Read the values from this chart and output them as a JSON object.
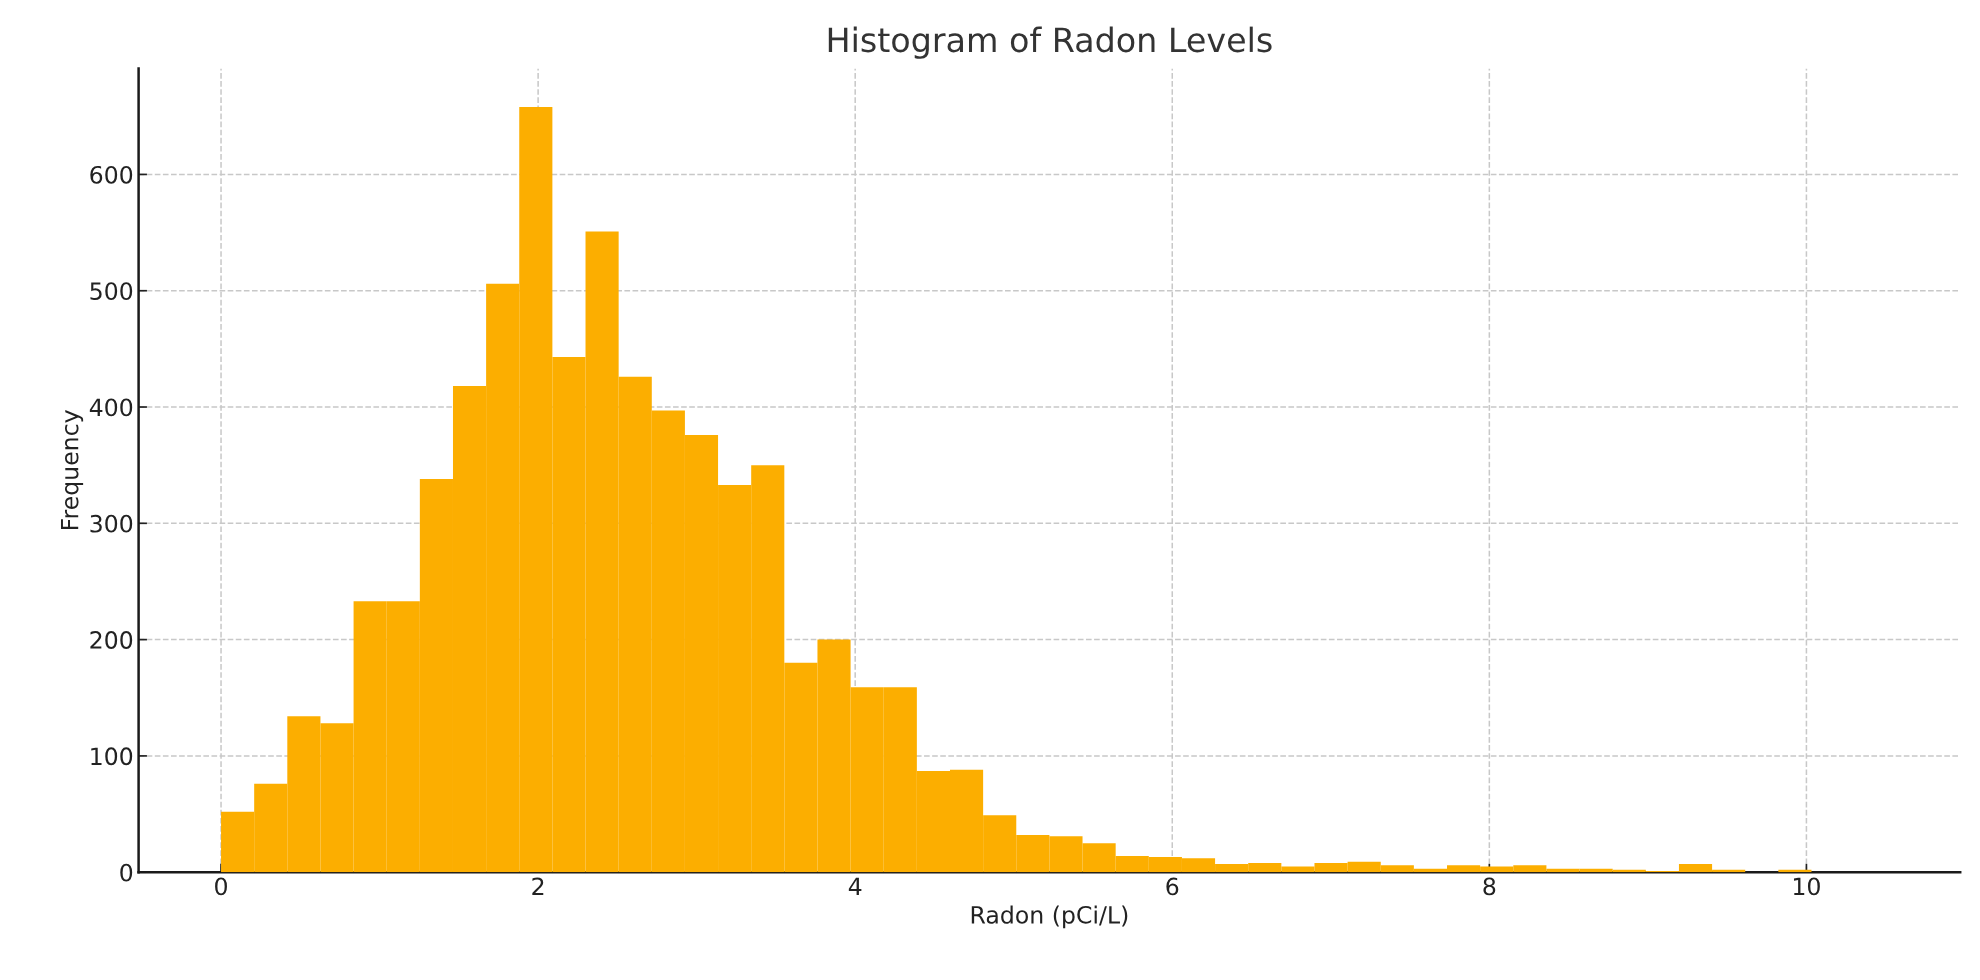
{
  "chart_data": {
    "type": "histogram",
    "title": "Histogram of Radon Levels",
    "xlabel": "Radon (pCi/L)",
    "ylabel": "Frequency",
    "bins": [
      0,
      0.209,
      0.418,
      0.627,
      0.836,
      1.045,
      1.254,
      1.463,
      1.672,
      1.881,
      2.09,
      2.299,
      2.508,
      2.717,
      2.926,
      3.135,
      3.344,
      3.553,
      3.762,
      3.971,
      4.18,
      4.389,
      4.598,
      4.807,
      5.016,
      5.225,
      5.434,
      5.643,
      5.852,
      6.061,
      6.27,
      6.479,
      6.688,
      6.897,
      7.106,
      7.315,
      7.524,
      7.733,
      7.942,
      8.151,
      8.36,
      8.569,
      8.778,
      8.987,
      9.196,
      9.405,
      9.614,
      9.823,
      10.032
    ],
    "values": [
      52,
      76,
      134,
      128,
      233,
      233,
      338,
      418,
      506,
      658,
      443,
      551,
      426,
      397,
      376,
      333,
      350,
      180,
      200,
      159,
      159,
      87,
      88,
      49,
      32,
      31,
      25,
      14,
      13,
      12,
      7,
      8,
      5,
      8,
      9,
      6,
      3,
      6,
      5,
      6,
      3,
      3,
      2,
      1,
      7,
      2,
      0,
      2
    ],
    "color": "#fcae00",
    "xlim": [
      -0.52,
      10.97
    ],
    "ylim": [
      0,
      691
    ],
    "xticks": [
      0,
      2,
      4,
      6,
      8,
      10
    ],
    "yticks": [
      0,
      100,
      200,
      300,
      400,
      500,
      600
    ],
    "grid": true
  }
}
